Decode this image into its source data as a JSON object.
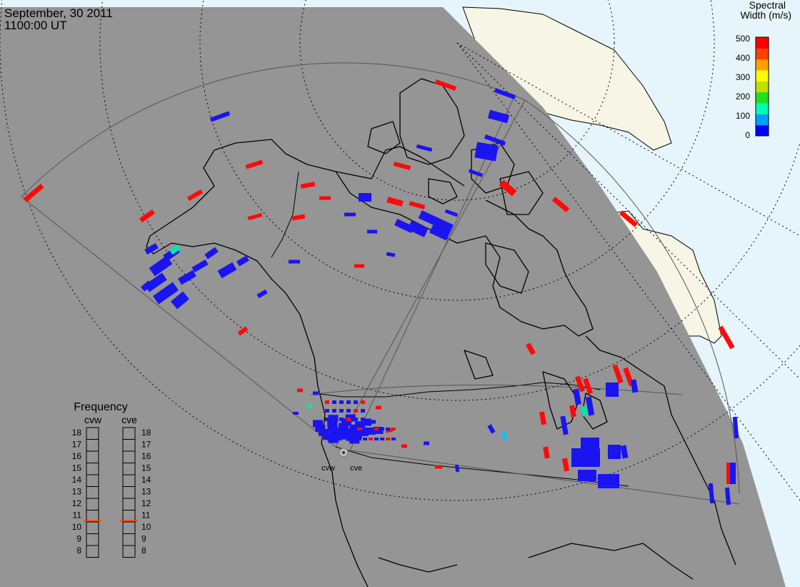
{
  "header": {
    "date": "September, 30 2011",
    "time": "1100:00 UT"
  },
  "colorbar": {
    "title_line1": "Spectral",
    "title_line2": "Width (m/s)",
    "ticks": [
      "500",
      "400",
      "300",
      "200",
      "100",
      "0"
    ],
    "colors": [
      "#0000ff",
      "#00a0ff",
      "#00ffb0",
      "#20e020",
      "#c0e000",
      "#ffff00",
      "#ffa000",
      "#ff4000",
      "#ff0000"
    ]
  },
  "radars": {
    "west_code": "cvw",
    "east_code": "cve"
  },
  "frequency": {
    "title": "Frequency",
    "left_label": "cvw",
    "right_label": "cve",
    "levels": [
      "18",
      "17",
      "16",
      "15",
      "14",
      "13",
      "12",
      "11",
      "10",
      "9",
      "8"
    ],
    "cvw_mhz": 10.6,
    "cve_mhz": 10.6,
    "indicator_color": "#ff4000"
  },
  "map": {
    "night_color": "#959595",
    "ocean_day_color": "#e6f5fb",
    "land_day_color": "#f7f5e6",
    "echo_low_color": "#1a14f0",
    "echo_high_color": "#ff0a0a"
  }
}
